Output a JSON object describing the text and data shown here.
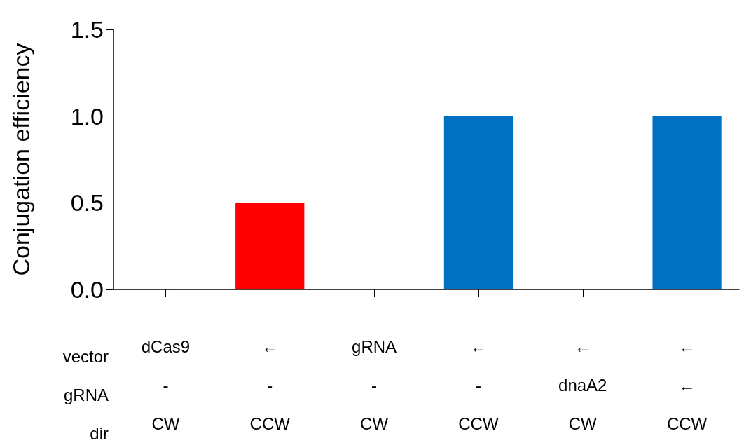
{
  "chart_data": {
    "type": "bar",
    "ylabel": "Conjugation efficiency",
    "categories": [
      "dCas9\n-\nCW",
      "←\n-\nCCW",
      "gRNA\n-\nCW",
      "←\n-\nCCW",
      "←\ndnaA2\nCW",
      "←\n←\nCCW"
    ],
    "values": [
      0,
      0.5,
      0,
      1,
      0,
      1
    ],
    "colors": [
      "#0070c0",
      "#ff0000",
      "#0070c0",
      "#0070c0",
      "#0070c0",
      "#0070c0"
    ],
    "ylim": [
      0,
      1.5
    ],
    "yticks": [
      {
        "value": 0,
        "label": "0.0"
      },
      0.5,
      {
        "value": 1,
        "label": "1.0"
      },
      1.5
    ],
    "annotations": [
      "vector",
      "gRNA",
      "dir"
    ],
    "grid": false
  }
}
